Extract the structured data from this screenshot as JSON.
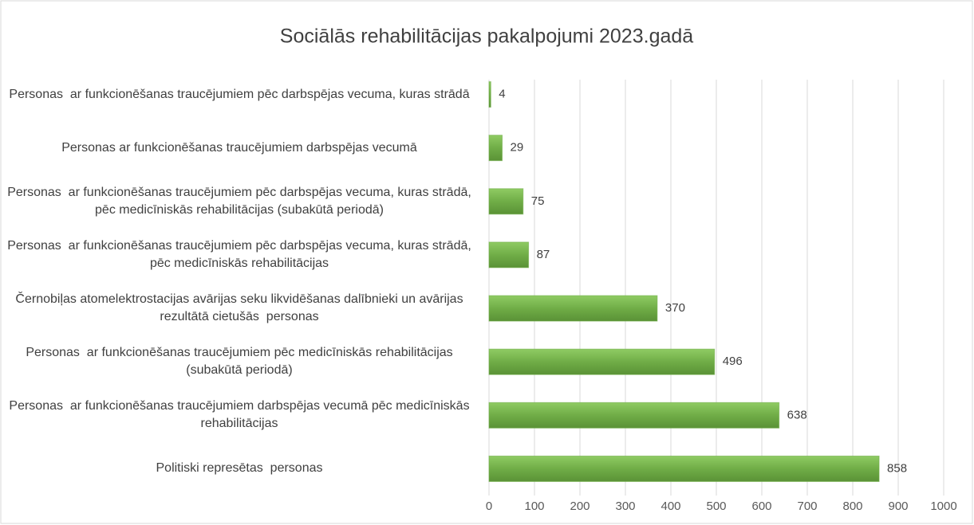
{
  "chart_data": {
    "type": "bar",
    "orientation": "horizontal",
    "title": "Sociālās rehabilitācijas pakalpojumi 2023.gadā",
    "categories": [
      "Personas  ar funkcionēšanas traucējumiem pēc darbspējas vecuma, kuras strādā",
      "Personas ar funkcionēšanas traucējumiem darbspējas vecumā",
      "Personas  ar funkcionēšanas traucējumiem pēc darbspējas vecuma, kuras strādā, pēc medicīniskās rehabilitācijas (subakūtā periodā)",
      "Personas  ar funkcionēšanas traucējumiem pēc darbspējas vecuma, kuras strādā, pēc medicīniskās rehabilitācijas",
      "Černobiļas atomelektrostacijas avārijas seku likvidēšanas dalībnieki un avārijas rezultātā cietušās  personas",
      "Personas  ar funkcionēšanas traucējumiem pēc medicīniskās rehabilitācijas (subakūtā periodā)",
      "Personas  ar funkcionēšanas traucējumiem darbspējas vecumā pēc medicīniskās rehabilitācijas",
      "Politiski represētas  personas"
    ],
    "values": [
      4,
      29,
      75,
      87,
      370,
      496,
      638,
      858
    ],
    "color": "#70ad47",
    "xlim": [
      0,
      1000
    ],
    "xticks": [
      0,
      100,
      200,
      300,
      400,
      500,
      600,
      700,
      800,
      900,
      1000
    ],
    "grid": true
  }
}
